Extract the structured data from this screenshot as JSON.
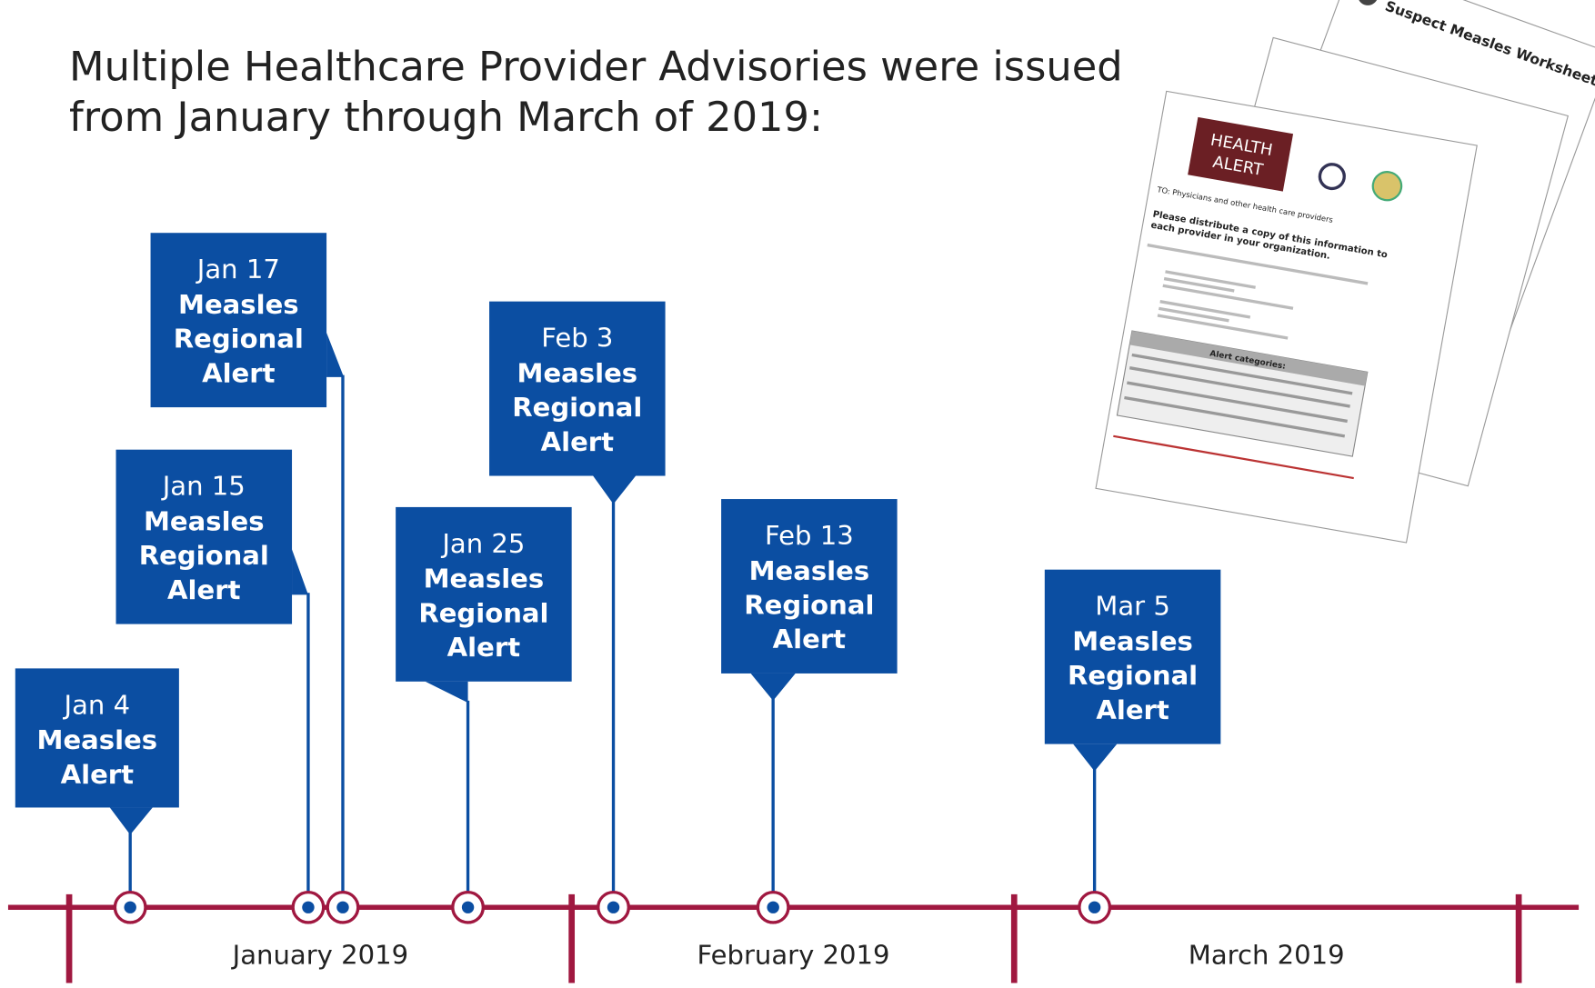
{
  "title": [
    "Multiple Healthcare Provider Advisories were issued",
    "from January through March of 2019:"
  ],
  "events": [
    {
      "date": "Jan 4",
      "lines": [
        "Measles",
        "Alert"
      ]
    },
    {
      "date": "Jan 15",
      "lines": [
        "Measles",
        "Regional",
        "Alert"
      ]
    },
    {
      "date": "Jan 17",
      "lines": [
        "Measles",
        "Regional",
        "Alert"
      ]
    },
    {
      "date": "Jan 25",
      "lines": [
        "Measles",
        "Regional",
        "Alert"
      ]
    },
    {
      "date": "Feb 3",
      "lines": [
        "Measles",
        "Regional",
        "Alert"
      ]
    },
    {
      "date": "Feb 13",
      "lines": [
        "Measles",
        "Regional",
        "Alert"
      ]
    },
    {
      "date": "Mar 5",
      "lines": [
        "Measles",
        "Regional",
        "Alert"
      ]
    }
  ],
  "months": [
    "January 2019",
    "February 2019",
    "March 2019"
  ],
  "documents": {
    "worksheet_title": "Suspect Measles Worksheet",
    "alert_badge": [
      "HEALTH",
      "ALERT"
    ],
    "to_line": "TO: Physicians and other health care providers",
    "distribute": [
      "Please distribute a copy of this information to",
      "each provider in your organization."
    ],
    "categories": "Alert categories:"
  }
}
